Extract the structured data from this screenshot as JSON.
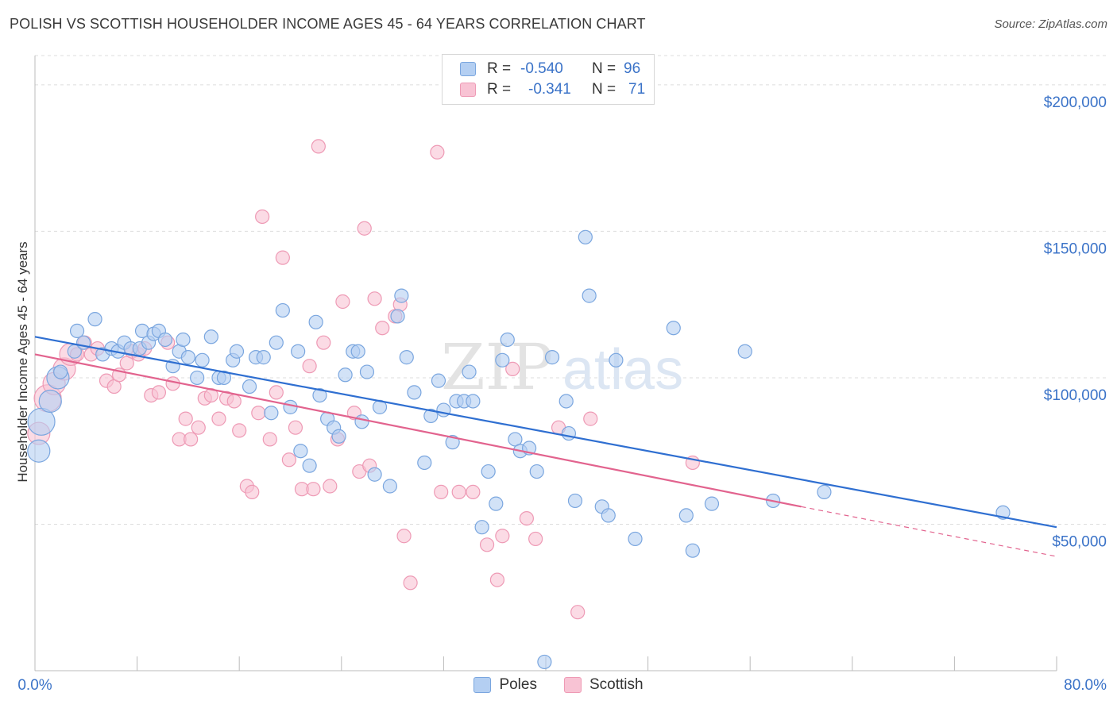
{
  "title": "POLISH VS SCOTTISH HOUSEHOLDER INCOME AGES 45 - 64 YEARS CORRELATION CHART",
  "source": "Source: ZipAtlas.com",
  "watermark": "ZIPatlas",
  "legend": {
    "rows": [
      {
        "r_label": "R =",
        "r_value": "-0.540",
        "n_label": "N =",
        "n_value": "96"
      },
      {
        "r_label": "R =",
        "r_value": "-0.341",
        "n_label": "N =",
        "n_value": "71"
      }
    ]
  },
  "bottom_legend": [
    "Poles",
    "Scottish"
  ],
  "colors": {
    "poles_fill": "#b4cff2",
    "poles_stroke": "#7aa6df",
    "poles_line": "#2f6fd1",
    "scottish_fill": "#f8c3d4",
    "scottish_stroke": "#ee9ab5",
    "scottish_line": "#e2638e",
    "axis_label": "#3b73c8",
    "grid": "#dddddd"
  },
  "chart_data": {
    "type": "scatter",
    "title": "POLISH VS SCOTTISH HOUSEHOLDER INCOME AGES 45 - 64 YEARS CORRELATION CHART",
    "xlabel": "",
    "ylabel": "Householder Income Ages 45 - 64 years",
    "xlim": [
      0,
      80
    ],
    "ylim": [
      0,
      210000
    ],
    "x_tick_labels": [
      "0.0%",
      "80.0%"
    ],
    "y_ticks": [
      50000,
      100000,
      150000,
      200000
    ],
    "y_tick_labels": [
      "$50,000",
      "$100,000",
      "$150,000",
      "$200,000"
    ],
    "grid": true,
    "legend_position": "top-center",
    "series": [
      {
        "name": "Poles",
        "trend": {
          "x": [
            0,
            80
          ],
          "y": [
            114000,
            49000
          ]
        },
        "points": [
          [
            0.3,
            75000,
            2
          ],
          [
            0.5,
            85000,
            3
          ],
          [
            1.2,
            92000,
            2
          ],
          [
            1.8,
            100000,
            2
          ],
          [
            2.0,
            102000,
            1
          ],
          [
            3.1,
            109000,
            1
          ],
          [
            3.3,
            116000,
            1
          ],
          [
            3.8,
            112000,
            1
          ],
          [
            4.7,
            120000,
            1
          ],
          [
            5.3,
            108000,
            1
          ],
          [
            6.0,
            110000,
            1
          ],
          [
            6.5,
            109000,
            1
          ],
          [
            7.0,
            112000,
            1
          ],
          [
            7.5,
            110000,
            1
          ],
          [
            8.2,
            110000,
            1
          ],
          [
            8.4,
            116000,
            1
          ],
          [
            8.9,
            112000,
            1
          ],
          [
            9.3,
            115000,
            1
          ],
          [
            9.7,
            116000,
            1
          ],
          [
            10.2,
            113000,
            1
          ],
          [
            10.8,
            104000,
            1
          ],
          [
            11.3,
            109000,
            1
          ],
          [
            11.6,
            113000,
            1
          ],
          [
            12.0,
            107000,
            1
          ],
          [
            12.7,
            100000,
            1
          ],
          [
            13.1,
            106000,
            1
          ],
          [
            13.8,
            114000,
            1
          ],
          [
            14.4,
            100000,
            1
          ],
          [
            14.8,
            100000,
            1
          ],
          [
            15.5,
            106000,
            1
          ],
          [
            15.8,
            109000,
            1
          ],
          [
            16.8,
            97000,
            1
          ],
          [
            17.3,
            107000,
            1
          ],
          [
            17.9,
            107000,
            1
          ],
          [
            18.5,
            88000,
            1
          ],
          [
            18.9,
            112000,
            1
          ],
          [
            19.4,
            123000,
            1
          ],
          [
            20.0,
            90000,
            1
          ],
          [
            20.6,
            109000,
            1
          ],
          [
            20.8,
            75000,
            1
          ],
          [
            21.5,
            70000,
            1
          ],
          [
            22.0,
            119000,
            1
          ],
          [
            22.3,
            94000,
            1
          ],
          [
            22.9,
            86000,
            1
          ],
          [
            23.4,
            83000,
            1
          ],
          [
            23.8,
            80000,
            1
          ],
          [
            24.3,
            101000,
            1
          ],
          [
            24.9,
            109000,
            1
          ],
          [
            25.3,
            109000,
            1
          ],
          [
            25.6,
            85000,
            1
          ],
          [
            26.0,
            102000,
            1
          ],
          [
            26.6,
            67000,
            1
          ],
          [
            27.0,
            90000,
            1
          ],
          [
            27.8,
            63000,
            1
          ],
          [
            28.4,
            121000,
            1
          ],
          [
            28.7,
            128000,
            1
          ],
          [
            29.1,
            107000,
            1
          ],
          [
            29.7,
            95000,
            1
          ],
          [
            30.5,
            71000,
            1
          ],
          [
            31.0,
            87000,
            1
          ],
          [
            31.6,
            99000,
            1
          ],
          [
            32.0,
            89000,
            1
          ],
          [
            32.7,
            78000,
            1
          ],
          [
            33.0,
            92000,
            1
          ],
          [
            33.6,
            92000,
            1
          ],
          [
            34.0,
            102000,
            1
          ],
          [
            34.3,
            92000,
            1
          ],
          [
            35.0,
            49000,
            1
          ],
          [
            35.5,
            68000,
            1
          ],
          [
            36.1,
            57000,
            1
          ],
          [
            36.6,
            106000,
            1
          ],
          [
            37.0,
            113000,
            1
          ],
          [
            37.6,
            79000,
            1
          ],
          [
            38.0,
            75000,
            1
          ],
          [
            38.7,
            76000,
            1
          ],
          [
            39.3,
            68000,
            1
          ],
          [
            39.9,
            3000,
            1
          ],
          [
            40.5,
            107000,
            1
          ],
          [
            41.6,
            92000,
            1
          ],
          [
            41.8,
            81000,
            1
          ],
          [
            42.3,
            58000,
            1
          ],
          [
            43.1,
            148000,
            1
          ],
          [
            43.4,
            128000,
            1
          ],
          [
            44.4,
            56000,
            1
          ],
          [
            44.9,
            53000,
            1
          ],
          [
            45.5,
            106000,
            1
          ],
          [
            47.0,
            45000,
            1
          ],
          [
            50.0,
            117000,
            1
          ],
          [
            51.0,
            53000,
            1
          ],
          [
            51.5,
            41000,
            1
          ],
          [
            53.0,
            57000,
            1
          ],
          [
            55.6,
            109000,
            1
          ],
          [
            57.8,
            58000,
            1
          ],
          [
            61.8,
            61000,
            1
          ],
          [
            75.8,
            54000,
            1
          ]
        ]
      },
      {
        "name": "Scottish",
        "trend": {
          "x": [
            0,
            60
          ],
          "y": [
            108000,
            56000
          ]
        },
        "trend_extension": {
          "x": [
            60,
            80
          ],
          "y": [
            56000,
            39000
          ]
        },
        "points": [
          [
            0.3,
            81000,
            2
          ],
          [
            1.0,
            93000,
            3
          ],
          [
            1.5,
            98000,
            2
          ],
          [
            2.3,
            103000,
            2
          ],
          [
            2.8,
            108000,
            2
          ],
          [
            3.3,
            108000,
            1
          ],
          [
            3.9,
            112000,
            1
          ],
          [
            4.4,
            108000,
            1
          ],
          [
            4.9,
            110000,
            1
          ],
          [
            5.6,
            99000,
            1
          ],
          [
            6.2,
            97000,
            1
          ],
          [
            6.6,
            101000,
            1
          ],
          [
            7.2,
            105000,
            1
          ],
          [
            7.6,
            109000,
            1
          ],
          [
            8.1,
            108000,
            1
          ],
          [
            8.6,
            110000,
            1
          ],
          [
            9.1,
            94000,
            1
          ],
          [
            9.7,
            95000,
            1
          ],
          [
            10.4,
            112000,
            1
          ],
          [
            10.8,
            98000,
            1
          ],
          [
            11.3,
            79000,
            1
          ],
          [
            11.8,
            86000,
            1
          ],
          [
            12.2,
            79000,
            1
          ],
          [
            12.8,
            83000,
            1
          ],
          [
            13.3,
            93000,
            1
          ],
          [
            13.8,
            94000,
            1
          ],
          [
            14.4,
            86000,
            1
          ],
          [
            15.0,
            93000,
            1
          ],
          [
            15.6,
            92000,
            1
          ],
          [
            16.0,
            82000,
            1
          ],
          [
            16.6,
            63000,
            1
          ],
          [
            17.0,
            61000,
            1
          ],
          [
            17.5,
            88000,
            1
          ],
          [
            17.8,
            155000,
            1
          ],
          [
            18.4,
            79000,
            1
          ],
          [
            18.9,
            95000,
            1
          ],
          [
            19.4,
            141000,
            1
          ],
          [
            19.9,
            72000,
            1
          ],
          [
            20.4,
            83000,
            1
          ],
          [
            20.9,
            62000,
            1
          ],
          [
            21.5,
            104000,
            1
          ],
          [
            21.8,
            62000,
            1
          ],
          [
            22.2,
            179000,
            1
          ],
          [
            22.6,
            112000,
            1
          ],
          [
            23.1,
            63000,
            1
          ],
          [
            23.7,
            79000,
            1
          ],
          [
            24.1,
            126000,
            1
          ],
          [
            25.0,
            88000,
            1
          ],
          [
            25.4,
            68000,
            1
          ],
          [
            25.8,
            151000,
            1
          ],
          [
            26.2,
            70000,
            1
          ],
          [
            26.6,
            127000,
            1
          ],
          [
            27.2,
            117000,
            1
          ],
          [
            28.2,
            121000,
            1
          ],
          [
            28.6,
            125000,
            1
          ],
          [
            28.9,
            46000,
            1
          ],
          [
            29.4,
            30000,
            1
          ],
          [
            31.5,
            177000,
            1
          ],
          [
            31.8,
            61000,
            1
          ],
          [
            33.2,
            61000,
            1
          ],
          [
            34.3,
            61000,
            1
          ],
          [
            35.4,
            43000,
            1
          ],
          [
            36.2,
            31000,
            1
          ],
          [
            36.6,
            46000,
            1
          ],
          [
            37.4,
            103000,
            1
          ],
          [
            38.5,
            52000,
            1
          ],
          [
            39.2,
            45000,
            1
          ],
          [
            41.0,
            83000,
            1
          ],
          [
            42.5,
            20000,
            1
          ],
          [
            43.5,
            86000,
            1
          ],
          [
            51.5,
            71000,
            1
          ]
        ]
      }
    ]
  }
}
